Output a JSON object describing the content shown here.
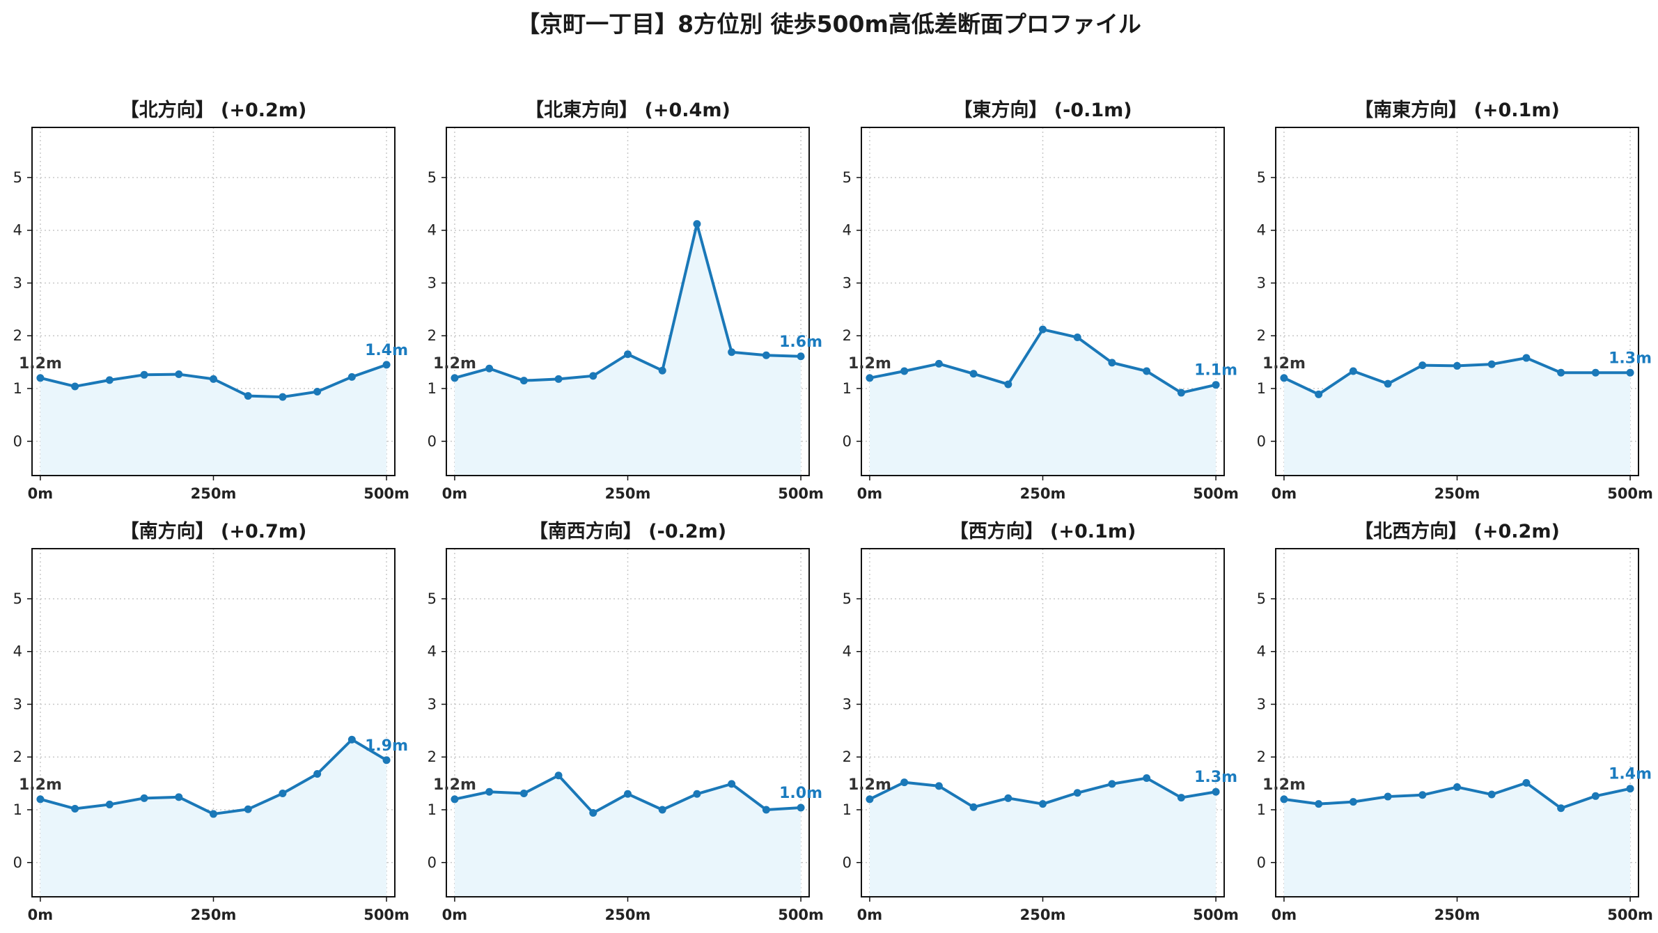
{
  "title": "【京町一丁目】8方位別 徒歩500m高低差断面プロファイル",
  "colors": {
    "line": "#1a78b8",
    "fill": "#eaf6fc",
    "grid": "#c8c8c8",
    "end_label": "#1a7bbf",
    "start_label": "#333333"
  },
  "chart_data": [
    {
      "type": "area",
      "title": "【北方向】 (+0.2m)",
      "x": [
        0,
        50,
        100,
        150,
        200,
        250,
        300,
        350,
        400,
        450,
        500
      ],
      "y": [
        1.2,
        1.04,
        1.16,
        1.26,
        1.27,
        1.18,
        0.86,
        0.84,
        0.94,
        1.22,
        1.45
      ],
      "ylim": [
        -0.65,
        5.95
      ],
      "xlim": [
        -12,
        512
      ],
      "yticks": [
        "0",
        "1",
        "2",
        "3",
        "4",
        "5"
      ],
      "xticks": [
        "0m",
        "250m",
        "500m"
      ],
      "start_label": "1.2m",
      "end_label": "1.4m",
      "grid": true
    },
    {
      "type": "area",
      "title": "【北東方向】 (+0.4m)",
      "x": [
        0,
        50,
        100,
        150,
        200,
        250,
        300,
        350,
        400,
        450,
        500
      ],
      "y": [
        1.2,
        1.38,
        1.15,
        1.18,
        1.24,
        1.65,
        1.34,
        4.12,
        1.69,
        1.63,
        1.61
      ],
      "ylim": [
        -0.65,
        5.95
      ],
      "xlim": [
        -12,
        512
      ],
      "yticks": [
        "0",
        "1",
        "2",
        "3",
        "4",
        "5"
      ],
      "xticks": [
        "0m",
        "250m",
        "500m"
      ],
      "start_label": "1.2m",
      "end_label": "1.6m",
      "grid": true
    },
    {
      "type": "area",
      "title": "【東方向】 (-0.1m)",
      "x": [
        0,
        50,
        100,
        150,
        200,
        250,
        300,
        350,
        400,
        450,
        500
      ],
      "y": [
        1.2,
        1.33,
        1.47,
        1.28,
        1.08,
        2.12,
        1.97,
        1.49,
        1.33,
        0.92,
        1.07
      ],
      "ylim": [
        -0.65,
        5.95
      ],
      "xlim": [
        -12,
        512
      ],
      "yticks": [
        "0",
        "1",
        "2",
        "3",
        "4",
        "5"
      ],
      "xticks": [
        "0m",
        "250m",
        "500m"
      ],
      "start_label": "1.2m",
      "end_label": "1.1m",
      "grid": true
    },
    {
      "type": "area",
      "title": "【南東方向】 (+0.1m)",
      "x": [
        0,
        50,
        100,
        150,
        200,
        250,
        300,
        350,
        400,
        450,
        500
      ],
      "y": [
        1.2,
        0.89,
        1.33,
        1.09,
        1.44,
        1.43,
        1.46,
        1.58,
        1.3,
        1.3,
        1.3
      ],
      "ylim": [
        -0.65,
        5.95
      ],
      "xlim": [
        -12,
        512
      ],
      "yticks": [
        "0",
        "1",
        "2",
        "3",
        "4",
        "5"
      ],
      "xticks": [
        "0m",
        "250m",
        "500m"
      ],
      "start_label": "1.2m",
      "end_label": "1.3m",
      "grid": true
    },
    {
      "type": "area",
      "title": "【南方向】 (+0.7m)",
      "x": [
        0,
        50,
        100,
        150,
        200,
        250,
        300,
        350,
        400,
        450,
        500
      ],
      "y": [
        1.2,
        1.02,
        1.1,
        1.22,
        1.24,
        0.92,
        1.01,
        1.31,
        1.68,
        2.33,
        1.94
      ],
      "ylim": [
        -0.65,
        5.95
      ],
      "xlim": [
        -12,
        512
      ],
      "yticks": [
        "0",
        "1",
        "2",
        "3",
        "4",
        "5"
      ],
      "xticks": [
        "0m",
        "250m",
        "500m"
      ],
      "start_label": "1.2m",
      "end_label": "1.9m",
      "grid": true
    },
    {
      "type": "area",
      "title": "【南西方向】 (-0.2m)",
      "x": [
        0,
        50,
        100,
        150,
        200,
        250,
        300,
        350,
        400,
        450,
        500
      ],
      "y": [
        1.2,
        1.34,
        1.31,
        1.65,
        0.94,
        1.3,
        1.0,
        1.3,
        1.49,
        1.0,
        1.04
      ],
      "ylim": [
        -0.65,
        5.95
      ],
      "xlim": [
        -12,
        512
      ],
      "yticks": [
        "0",
        "1",
        "2",
        "3",
        "4",
        "5"
      ],
      "xticks": [
        "0m",
        "250m",
        "500m"
      ],
      "start_label": "1.2m",
      "end_label": "1.0m",
      "grid": true
    },
    {
      "type": "area",
      "title": "【西方向】 (+0.1m)",
      "x": [
        0,
        50,
        100,
        150,
        200,
        250,
        300,
        350,
        400,
        450,
        500
      ],
      "y": [
        1.2,
        1.52,
        1.45,
        1.05,
        1.22,
        1.11,
        1.32,
        1.49,
        1.6,
        1.23,
        1.34
      ],
      "ylim": [
        -0.65,
        5.95
      ],
      "xlim": [
        -12,
        512
      ],
      "yticks": [
        "0",
        "1",
        "2",
        "3",
        "4",
        "5"
      ],
      "xticks": [
        "0m",
        "250m",
        "500m"
      ],
      "start_label": "1.2m",
      "end_label": "1.3m",
      "grid": true
    },
    {
      "type": "area",
      "title": "【北西方向】 (+0.2m)",
      "x": [
        0,
        50,
        100,
        150,
        200,
        250,
        300,
        350,
        400,
        450,
        500
      ],
      "y": [
        1.2,
        1.11,
        1.15,
        1.25,
        1.28,
        1.43,
        1.29,
        1.51,
        1.03,
        1.26,
        1.4
      ],
      "ylim": [
        -0.65,
        5.95
      ],
      "xlim": [
        -12,
        512
      ],
      "yticks": [
        "0",
        "1",
        "2",
        "3",
        "4",
        "5"
      ],
      "xticks": [
        "0m",
        "250m",
        "500m"
      ],
      "start_label": "1.2m",
      "end_label": "1.4m",
      "grid": true
    }
  ]
}
